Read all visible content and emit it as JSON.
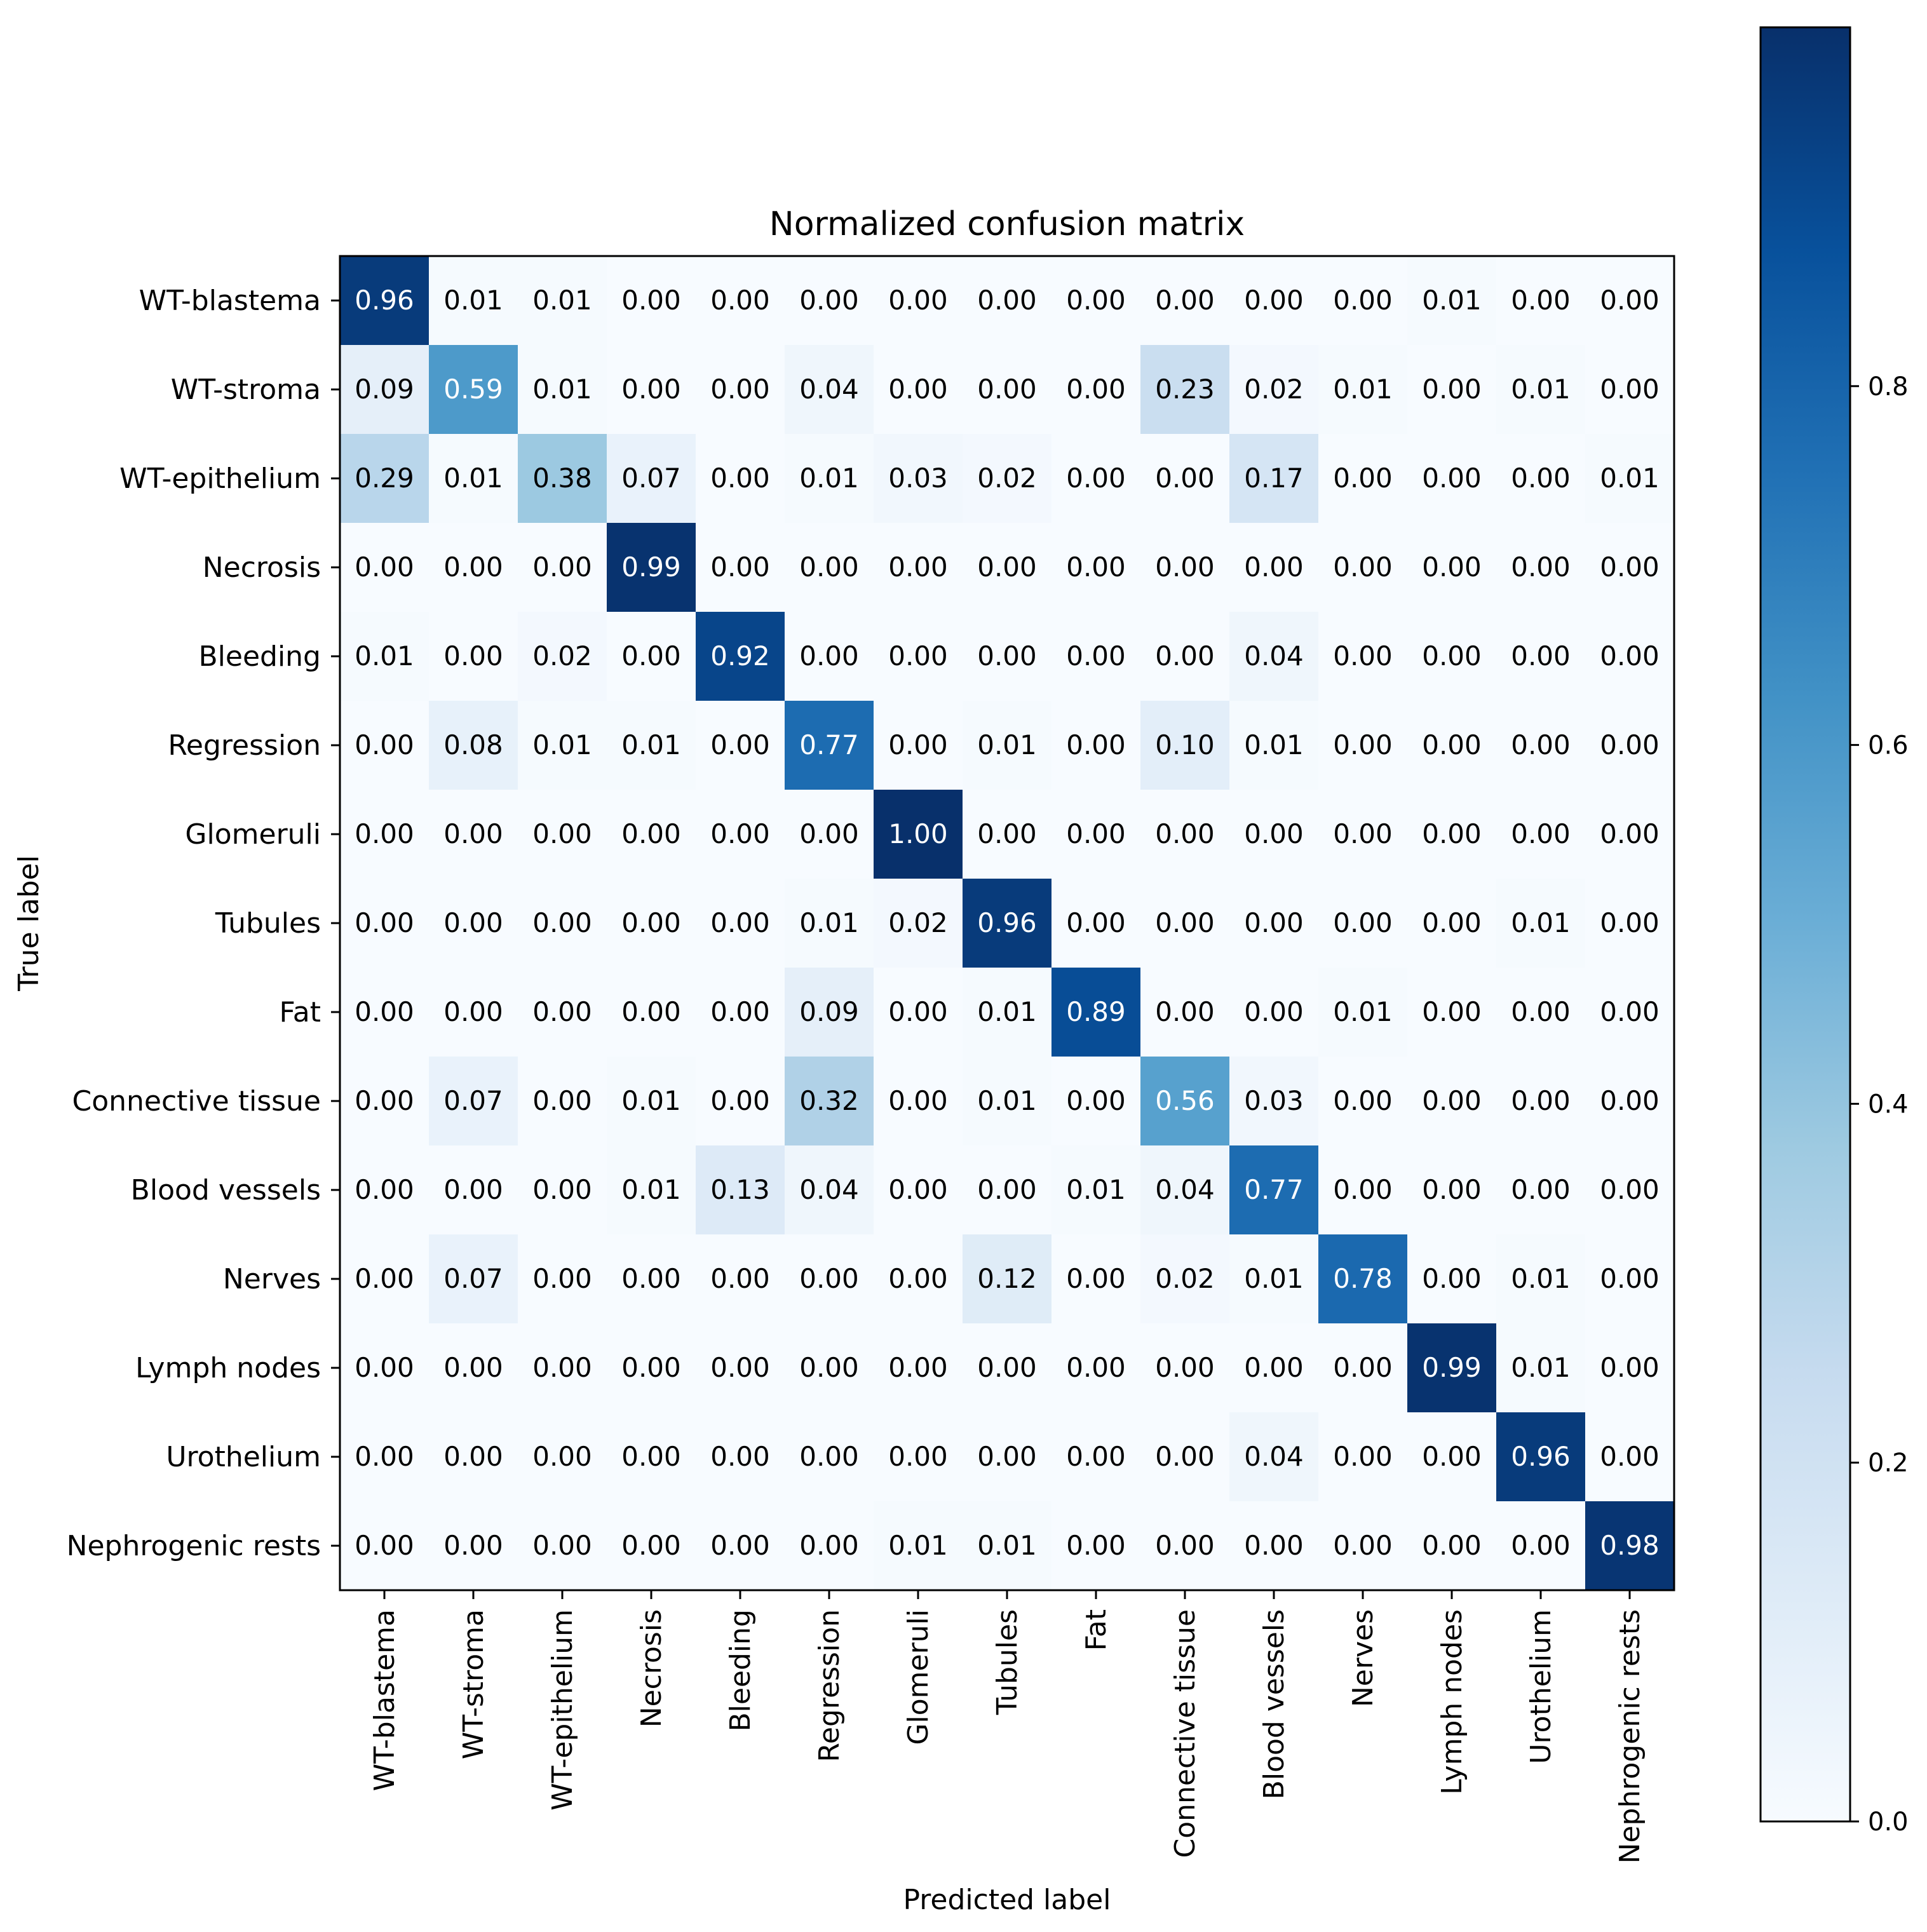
{
  "chart_data": {
    "type": "heatmap",
    "title": "Normalized confusion matrix",
    "xlabel": "Predicted label",
    "ylabel": "True label",
    "x_categories": [
      "WT-blastema",
      "WT-stroma",
      "WT-epithelium",
      "Necrosis",
      "Bleeding",
      "Regression",
      "Glomeruli",
      "Tubules",
      "Fat",
      "Connective tissue",
      "Blood vessels",
      "Nerves",
      "Lymph nodes",
      "Urothelium",
      "Nephrogenic rests"
    ],
    "y_categories": [
      "WT-blastema",
      "WT-stroma",
      "WT-epithelium",
      "Necrosis",
      "Bleeding",
      "Regression",
      "Glomeruli",
      "Tubules",
      "Fat",
      "Connective tissue",
      "Blood vessels",
      "Nerves",
      "Lymph nodes",
      "Urothelium",
      "Nephrogenic rests"
    ],
    "values": [
      [
        0.96,
        0.01,
        0.01,
        0.0,
        0.0,
        0.0,
        0.0,
        0.0,
        0.0,
        0.0,
        0.0,
        0.0,
        0.01,
        0.0,
        0.0
      ],
      [
        0.09,
        0.59,
        0.01,
        0.0,
        0.0,
        0.04,
        0.0,
        0.0,
        0.0,
        0.23,
        0.02,
        0.01,
        0.0,
        0.01,
        0.0
      ],
      [
        0.29,
        0.01,
        0.38,
        0.07,
        0.0,
        0.01,
        0.03,
        0.02,
        0.0,
        0.0,
        0.17,
        0.0,
        0.0,
        0.0,
        0.01
      ],
      [
        0.0,
        0.0,
        0.0,
        0.99,
        0.0,
        0.0,
        0.0,
        0.0,
        0.0,
        0.0,
        0.0,
        0.0,
        0.0,
        0.0,
        0.0
      ],
      [
        0.01,
        0.0,
        0.02,
        0.0,
        0.92,
        0.0,
        0.0,
        0.0,
        0.0,
        0.0,
        0.04,
        0.0,
        0.0,
        0.0,
        0.0
      ],
      [
        0.0,
        0.08,
        0.01,
        0.01,
        0.0,
        0.77,
        0.0,
        0.01,
        0.0,
        0.1,
        0.01,
        0.0,
        0.0,
        0.0,
        0.0
      ],
      [
        0.0,
        0.0,
        0.0,
        0.0,
        0.0,
        0.0,
        1.0,
        0.0,
        0.0,
        0.0,
        0.0,
        0.0,
        0.0,
        0.0,
        0.0
      ],
      [
        0.0,
        0.0,
        0.0,
        0.0,
        0.0,
        0.01,
        0.02,
        0.96,
        0.0,
        0.0,
        0.0,
        0.0,
        0.0,
        0.01,
        0.0
      ],
      [
        0.0,
        0.0,
        0.0,
        0.0,
        0.0,
        0.09,
        0.0,
        0.01,
        0.89,
        0.0,
        0.0,
        0.01,
        0.0,
        0.0,
        0.0
      ],
      [
        0.0,
        0.07,
        0.0,
        0.01,
        0.0,
        0.32,
        0.0,
        0.01,
        0.0,
        0.56,
        0.03,
        0.0,
        0.0,
        0.0,
        0.0
      ],
      [
        0.0,
        0.0,
        0.0,
        0.01,
        0.13,
        0.04,
        0.0,
        0.0,
        0.01,
        0.04,
        0.77,
        0.0,
        0.0,
        0.0,
        0.0
      ],
      [
        0.0,
        0.07,
        0.0,
        0.0,
        0.0,
        0.0,
        0.0,
        0.12,
        0.0,
        0.02,
        0.01,
        0.78,
        0.0,
        0.01,
        0.0
      ],
      [
        0.0,
        0.0,
        0.0,
        0.0,
        0.0,
        0.0,
        0.0,
        0.0,
        0.0,
        0.0,
        0.0,
        0.0,
        0.99,
        0.01,
        0.0
      ],
      [
        0.0,
        0.0,
        0.0,
        0.0,
        0.0,
        0.0,
        0.0,
        0.0,
        0.0,
        0.0,
        0.04,
        0.0,
        0.0,
        0.96,
        0.0
      ],
      [
        0.0,
        0.0,
        0.0,
        0.0,
        0.0,
        0.0,
        0.01,
        0.01,
        0.0,
        0.0,
        0.0,
        0.0,
        0.0,
        0.0,
        0.98
      ]
    ],
    "colormap": "Blues",
    "colorbar": {
      "range": [
        0.0,
        1.0
      ],
      "ticks": [
        0.0,
        0.2,
        0.4,
        0.6,
        0.8
      ],
      "tick_labels": [
        "0.0",
        "0.2",
        "0.4",
        "0.6",
        "0.8"
      ]
    },
    "text_color_threshold": 0.5,
    "grid": false
  }
}
